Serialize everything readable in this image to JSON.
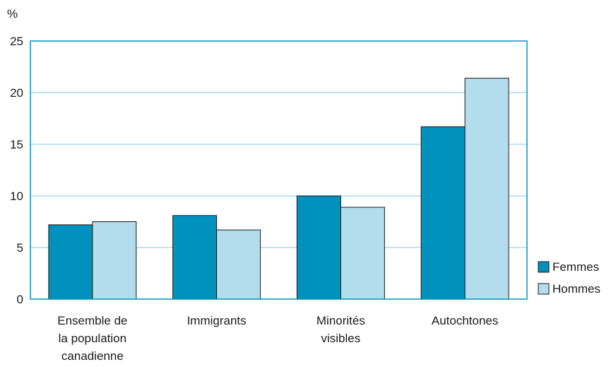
{
  "chart_data": {
    "type": "bar",
    "unit_label": "%",
    "categories": [
      [
        "Ensemble de",
        "la population",
        "canadienne"
      ],
      [
        "Immigrants"
      ],
      [
        "Minorités",
        "visibles"
      ],
      [
        "Autochtones"
      ]
    ],
    "series": [
      {
        "name": "Femmes",
        "color": "#0092bd",
        "values": [
          7.2,
          8.1,
          10.0,
          16.7
        ]
      },
      {
        "name": "Hommes",
        "color": "#b3dced",
        "values": [
          7.5,
          6.7,
          8.9,
          21.4
        ]
      }
    ],
    "ylim": [
      0,
      25
    ],
    "yticks": [
      0,
      5,
      10,
      15,
      20,
      25
    ],
    "grid": true,
    "legend_position": "bottom-right",
    "colors": {
      "axis": "#0092bd",
      "grid": "#7fc8e0",
      "bar_outline": "#1a1a1a"
    }
  }
}
